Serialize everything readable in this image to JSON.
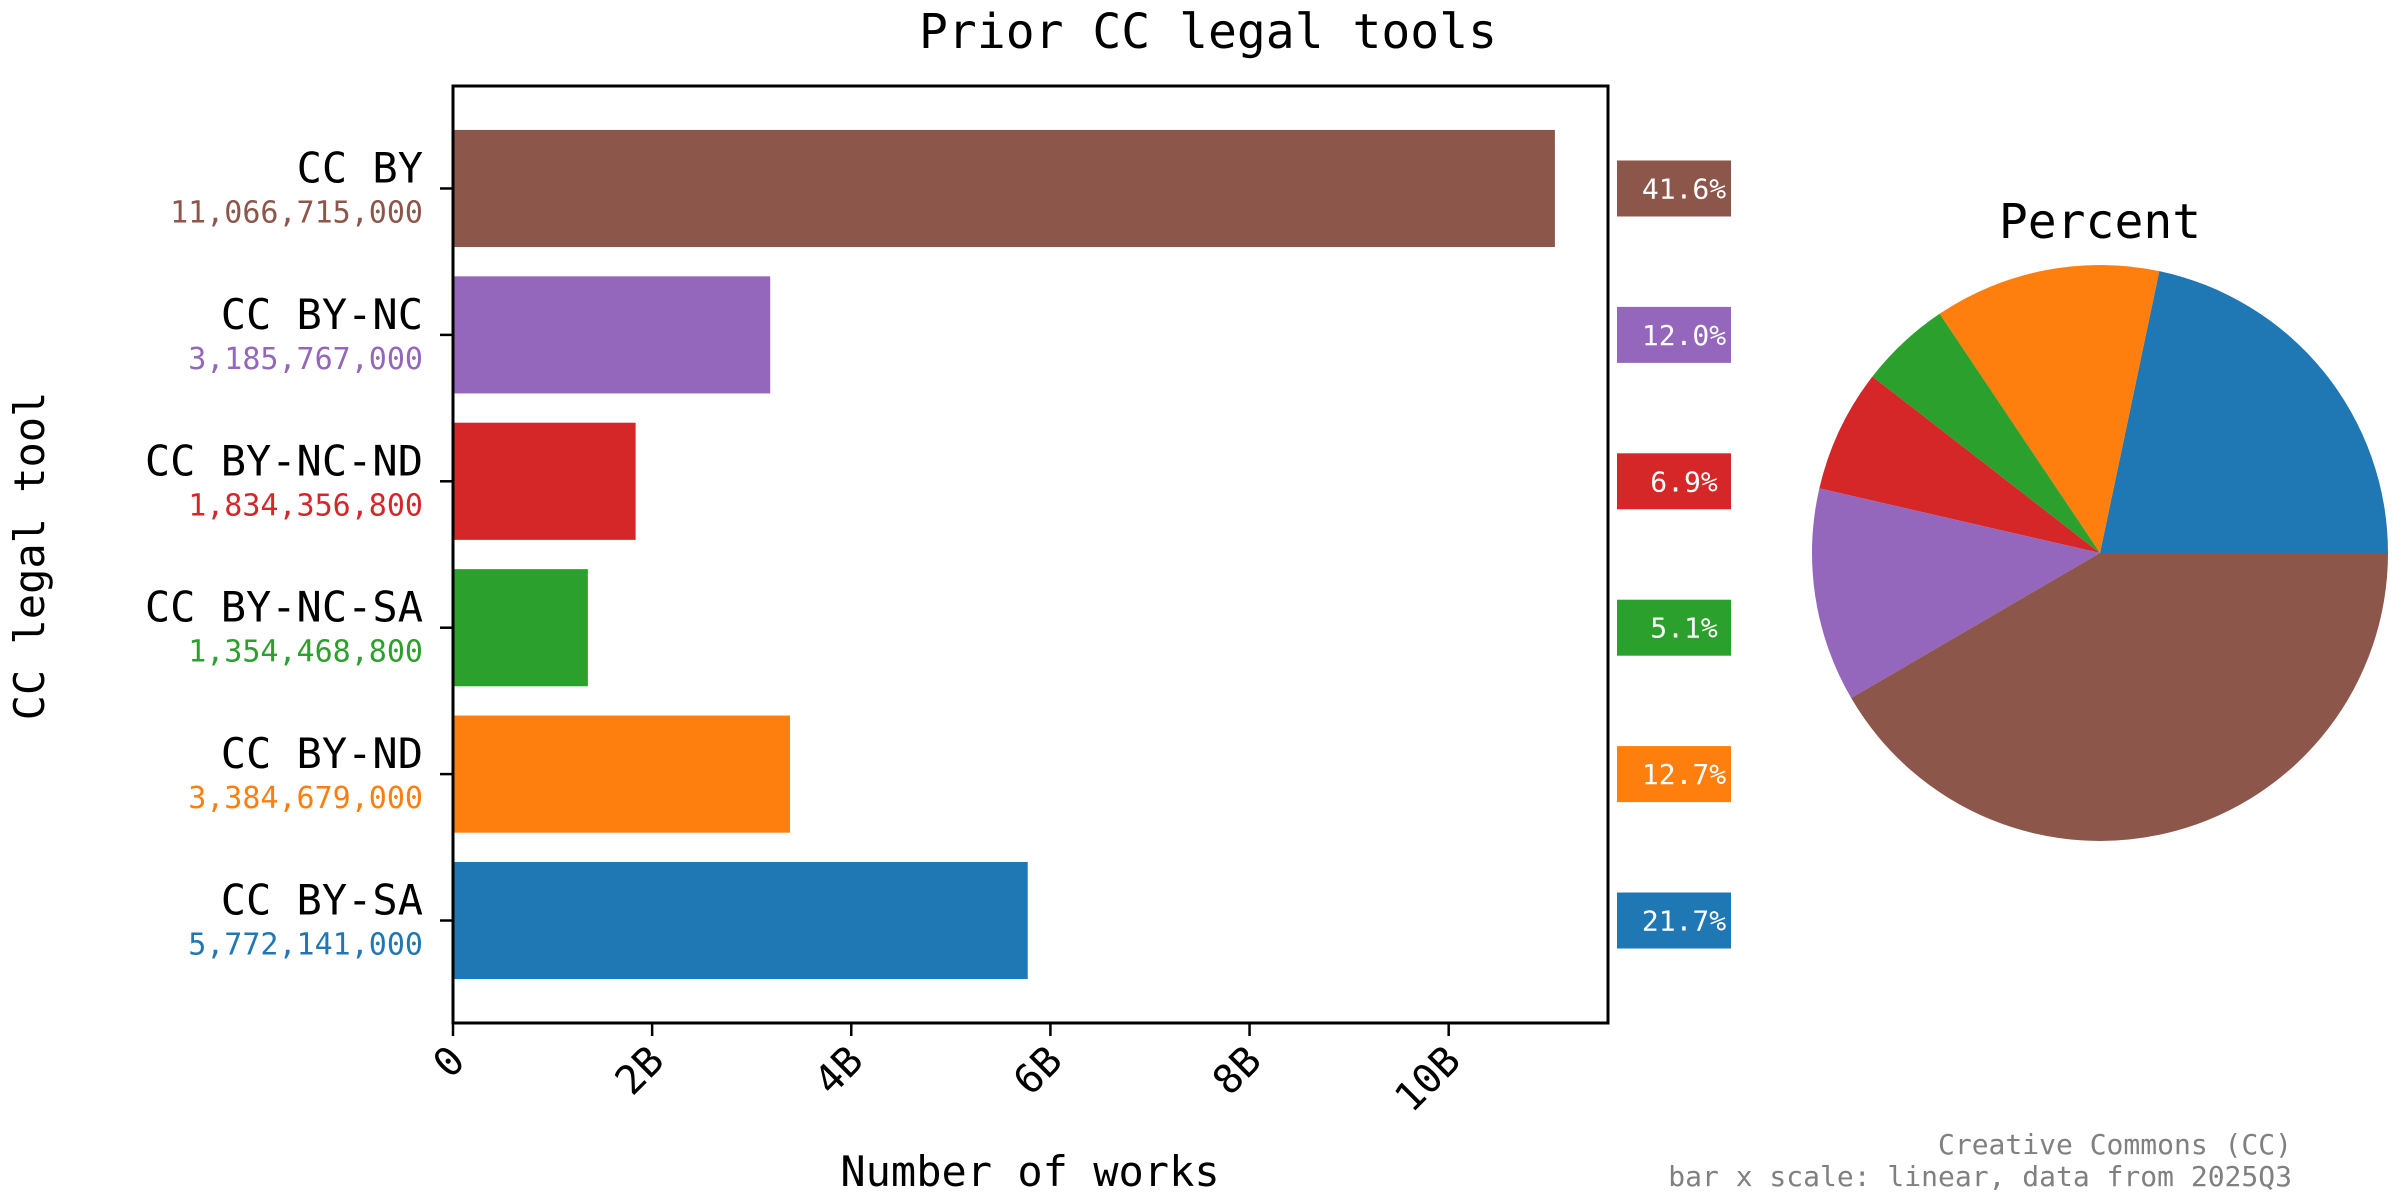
{
  "chart_data": [
    {
      "type": "bar",
      "orientation": "horizontal",
      "title": "Prior CC legal tools",
      "xlabel": "Number of works",
      "ylabel": "CC legal tool",
      "xlim": [
        0,
        11600000000
      ],
      "x_ticks": [
        {
          "value": 0,
          "label": "0"
        },
        {
          "value": 2000000000,
          "label": "2B"
        },
        {
          "value": 4000000000,
          "label": "4B"
        },
        {
          "value": 6000000000,
          "label": "6B"
        },
        {
          "value": 8000000000,
          "label": "8B"
        },
        {
          "value": 10000000000,
          "label": "10B"
        }
      ],
      "bars": [
        {
          "category": "CC BY",
          "value": 11066715000,
          "value_label": "11,066,715,000",
          "percent_label": "41.6%",
          "color": "#8c564b"
        },
        {
          "category": "CC BY-NC",
          "value": 3185767000,
          "value_label": "3,185,767,000",
          "percent_label": "12.0%",
          "color": "#9467bd"
        },
        {
          "category": "CC BY-NC-ND",
          "value": 1834356800,
          "value_label": "1,834,356,800",
          "percent_label": "6.9%",
          "color": "#d62728"
        },
        {
          "category": "CC BY-NC-SA",
          "value": 1354468800,
          "value_label": "1,354,468,800",
          "percent_label": "5.1%",
          "color": "#2ca02c"
        },
        {
          "category": "CC BY-ND",
          "value": 3384679000,
          "value_label": "3,384,679,000",
          "percent_label": "12.7%",
          "color": "#ff7f0e"
        },
        {
          "category": "CC BY-SA",
          "value": 5772141000,
          "value_label": "5,772,141,000",
          "percent_label": "21.7%",
          "color": "#1f77b4"
        }
      ],
      "grid": false
    },
    {
      "type": "pie",
      "title": "Percent",
      "slices": [
        {
          "category": "CC BY-SA",
          "percent": 21.7,
          "color": "#1f77b4"
        },
        {
          "category": "CC BY-ND",
          "percent": 12.7,
          "color": "#ff7f0e"
        },
        {
          "category": "CC BY-NC-SA",
          "percent": 5.1,
          "color": "#2ca02c"
        },
        {
          "category": "CC BY-NC-ND",
          "percent": 6.9,
          "color": "#d62728"
        },
        {
          "category": "CC BY-NC",
          "percent": 12.0,
          "color": "#9467bd"
        },
        {
          "category": "CC BY",
          "percent": 41.6,
          "color": "#8c564b"
        }
      ]
    }
  ],
  "footer": {
    "line1": "Creative Commons (CC)",
    "line2": "bar x scale: linear, data from 2025Q3"
  }
}
